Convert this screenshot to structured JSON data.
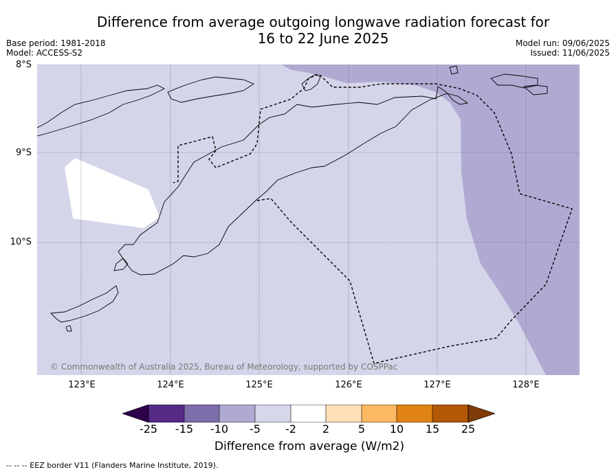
{
  "header": {
    "title_line1": "Difference from average outgoing longwave radiation forecast for",
    "title_line2": "16 to 22 June 2025",
    "base_period": "Base period: 1981-2018",
    "model": "Model: ACCESS-S2",
    "model_run": "Model run: 09/06/2025",
    "issued": "Issued: 11/06/2025"
  },
  "map": {
    "lat_labels": [
      "8°S",
      "9°S",
      "10°S"
    ],
    "lon_labels": [
      "123°E",
      "124°E",
      "125°E",
      "126°E",
      "127°E",
      "128°E"
    ],
    "copyright": "© Commonwealth of Australia 2025, Bureau of Meteorology, supported by COSPPac",
    "colors": {
      "background": "#d5d5ea",
      "minus10_minus5": "#b0aad3",
      "white_band": "#ffffff",
      "coastline": "#000000",
      "eez_border": "#000000"
    }
  },
  "colorbar": {
    "title": "Difference from average (W/m2)",
    "tick_labels": [
      "-25",
      "-15",
      "-10",
      "-5",
      "-2",
      "2",
      "5",
      "10",
      "15",
      "25"
    ],
    "bin_colors": [
      "#562b88",
      "#7e6eab",
      "#b0aad3",
      "#d7d7ea",
      "#ffffff",
      "#fee0b6",
      "#fdb863",
      "#e08214",
      "#b35806"
    ],
    "under_color": "#2d004b",
    "over_color": "#7f3b08"
  },
  "footer": {
    "legend_text": "--  --  -- EEZ border V11 (Flanders Marine Institute, 2019)."
  }
}
